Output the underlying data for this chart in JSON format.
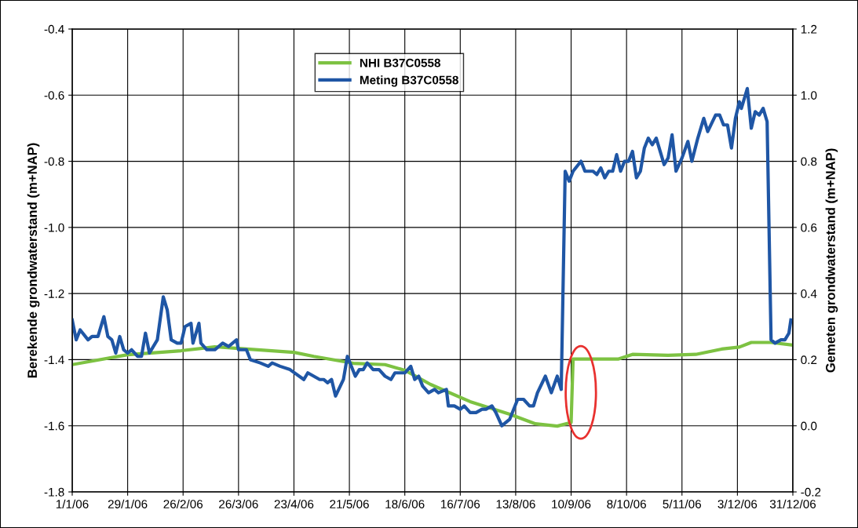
{
  "chart_data": {
    "type": "line",
    "ylabel": "Berekende grondwaterstand (m+NAP)",
    "y2label": "Gemeten grondwaterstand (m+NAP)",
    "xlim": [
      "2006-01-01",
      "2006-12-31"
    ],
    "xticks": [
      {
        "value": "2006-01-01",
        "label": "1/1/06"
      },
      {
        "value": "2006-01-29",
        "label": "29/1/06"
      },
      {
        "value": "2006-02-26",
        "label": "26/2/06"
      },
      {
        "value": "2006-03-26",
        "label": "26/3/06"
      },
      {
        "value": "2006-04-23",
        "label": "23/4/06"
      },
      {
        "value": "2006-05-21",
        "label": "21/5/06"
      },
      {
        "value": "2006-06-18",
        "label": "18/6/06"
      },
      {
        "value": "2006-07-16",
        "label": "16/7/06"
      },
      {
        "value": "2006-08-13",
        "label": "13/8/06"
      },
      {
        "value": "2006-09-10",
        "label": "10/9/06"
      },
      {
        "value": "2006-10-08",
        "label": "8/10/06"
      },
      {
        "value": "2006-11-05",
        "label": "5/11/06"
      },
      {
        "value": "2006-12-03",
        "label": "3/12/06"
      },
      {
        "value": "2006-12-31",
        "label": "31/12/06"
      }
    ],
    "ylim": [
      -1.8,
      -0.4
    ],
    "yticks": [
      {
        "value": -1.8,
        "label": "-1.8"
      },
      {
        "value": -1.6,
        "label": "-1.6"
      },
      {
        "value": -1.4,
        "label": "-1.4"
      },
      {
        "value": -1.2,
        "label": "-1.2"
      },
      {
        "value": -1.0,
        "label": "-1.0"
      },
      {
        "value": -0.8,
        "label": "-0.8"
      },
      {
        "value": -0.6,
        "label": "-0.6"
      },
      {
        "value": -0.4,
        "label": "-0.4"
      }
    ],
    "y2lim": [
      -0.2,
      1.2
    ],
    "y2ticks": [
      {
        "value": -0.2,
        "label": "-0.2"
      },
      {
        "value": 0.0,
        "label": "0.0"
      },
      {
        "value": 0.2,
        "label": "0.2"
      },
      {
        "value": 0.4,
        "label": "0.4"
      },
      {
        "value": 0.6,
        "label": "0.6"
      },
      {
        "value": 0.8,
        "label": "0.8"
      },
      {
        "value": 1.0,
        "label": "1.0"
      },
      {
        "value": 1.2,
        "label": "1.2"
      }
    ],
    "grid": true,
    "legend": "top",
    "marker": "none",
    "line_style": "solid",
    "series": [
      {
        "name": "NHI B37C0558",
        "color": "#7dc242",
        "x": [
          "2006-01-01",
          "2006-01-29",
          "2006-02-25",
          "2006-03-14",
          "2006-03-26",
          "2006-04-23",
          "2006-05-03",
          "2006-05-23",
          "2006-06-08",
          "2006-06-18",
          "2006-07-01",
          "2006-07-21",
          "2006-08-10",
          "2006-08-23",
          "2006-09-03",
          "2006-09-10",
          "2006-09-11",
          "2006-10-04",
          "2006-10-11",
          "2006-10-29",
          "2006-11-12",
          "2006-11-25",
          "2006-12-04",
          "2006-12-10",
          "2006-12-20",
          "2006-12-31"
        ],
        "values": [
          -1.415,
          -1.385,
          -1.373,
          -1.361,
          -1.366,
          -1.378,
          -1.39,
          -1.411,
          -1.415,
          -1.432,
          -1.475,
          -1.527,
          -1.565,
          -1.594,
          -1.601,
          -1.59,
          -1.398,
          -1.398,
          -1.384,
          -1.387,
          -1.384,
          -1.368,
          -1.362,
          -1.348,
          -1.348,
          -1.356
        ]
      },
      {
        "name": "Meting B37C0558",
        "color": "#1f56a5",
        "axis": "y2",
        "x": [
          "2006-01-01",
          "2006-01-03",
          "2006-01-05",
          "2006-01-09",
          "2006-01-11",
          "2006-01-14",
          "2006-01-17",
          "2006-01-19",
          "2006-01-21",
          "2006-01-23",
          "2006-01-25",
          "2006-01-27",
          "2006-01-29",
          "2006-01-31",
          "2006-02-03",
          "2006-02-05",
          "2006-02-07",
          "2006-02-09",
          "2006-02-13",
          "2006-02-16",
          "2006-02-18",
          "2006-02-20",
          "2006-02-23",
          "2006-02-25",
          "2006-02-27",
          "2006-03-02",
          "2006-03-03",
          "2006-03-06",
          "2006-03-07",
          "2006-03-10",
          "2006-03-14",
          "2006-03-18",
          "2006-03-21",
          "2006-03-25",
          "2006-03-26",
          "2006-03-30",
          "2006-04-01",
          "2006-04-06",
          "2006-04-10",
          "2006-04-12",
          "2006-04-16",
          "2006-04-21",
          "2006-04-28",
          "2006-04-30",
          "2006-05-03",
          "2006-05-06",
          "2006-05-08",
          "2006-05-10",
          "2006-05-12",
          "2006-05-14",
          "2006-05-18",
          "2006-05-20",
          "2006-05-24",
          "2006-05-26",
          "2006-05-28",
          "2006-05-30",
          "2006-06-02",
          "2006-06-05",
          "2006-06-08",
          "2006-06-11",
          "2006-06-13",
          "2006-06-18",
          "2006-06-21",
          "2006-06-23",
          "2006-06-25",
          "2006-06-27",
          "2006-06-30",
          "2006-07-03",
          "2006-07-05",
          "2006-07-09",
          "2006-07-10",
          "2006-07-13",
          "2006-07-16",
          "2006-07-18",
          "2006-07-21",
          "2006-07-24",
          "2006-07-27",
          "2006-07-29",
          "2006-08-01",
          "2006-08-03",
          "2006-08-06",
          "2006-08-10",
          "2006-08-14",
          "2006-08-17",
          "2006-08-20",
          "2006-08-22",
          "2006-08-24",
          "2006-08-28",
          "2006-08-31",
          "2006-09-03",
          "2006-09-05",
          "2006-09-07",
          "2006-09-09",
          "2006-09-11",
          "2006-09-15",
          "2006-09-17",
          "2006-09-21",
          "2006-09-23",
          "2006-09-25",
          "2006-09-27",
          "2006-09-29",
          "2006-10-01",
          "2006-10-03",
          "2006-10-05",
          "2006-10-07",
          "2006-10-09",
          "2006-10-11",
          "2006-10-13",
          "2006-10-15",
          "2006-10-17",
          "2006-10-19",
          "2006-10-21",
          "2006-10-23",
          "2006-10-27",
          "2006-10-29",
          "2006-10-31",
          "2006-11-02",
          "2006-11-05",
          "2006-11-08",
          "2006-11-10",
          "2006-11-13",
          "2006-11-16",
          "2006-11-18",
          "2006-11-22",
          "2006-11-24",
          "2006-11-26",
          "2006-11-28",
          "2006-11-30",
          "2006-12-02",
          "2006-12-04",
          "2006-12-05",
          "2006-12-08",
          "2006-12-10",
          "2006-12-12",
          "2006-12-14",
          "2006-12-16",
          "2006-12-18",
          "2006-12-20",
          "2006-12-22",
          "2006-12-25",
          "2006-12-27",
          "2006-12-29",
          "2006-12-30"
        ],
        "values": [
          0.32,
          0.26,
          0.29,
          0.26,
          0.27,
          0.27,
          0.33,
          0.27,
          0.26,
          0.22,
          0.27,
          0.23,
          0.22,
          0.23,
          0.21,
          0.21,
          0.28,
          0.22,
          0.26,
          0.39,
          0.35,
          0.26,
          0.25,
          0.25,
          0.3,
          0.31,
          0.25,
          0.31,
          0.25,
          0.23,
          0.23,
          0.25,
          0.24,
          0.26,
          0.23,
          0.23,
          0.2,
          0.19,
          0.18,
          0.19,
          0.18,
          0.17,
          0.14,
          0.16,
          0.15,
          0.14,
          0.14,
          0.13,
          0.14,
          0.09,
          0.14,
          0.21,
          0.15,
          0.17,
          0.17,
          0.19,
          0.17,
          0.17,
          0.15,
          0.14,
          0.16,
          0.16,
          0.18,
          0.14,
          0.15,
          0.12,
          0.1,
          0.11,
          0.1,
          0.11,
          0.06,
          0.06,
          0.05,
          0.06,
          0.04,
          0.04,
          0.05,
          0.05,
          0.06,
          0.04,
          0.0,
          0.02,
          0.08,
          0.08,
          0.06,
          0.06,
          0.1,
          0.15,
          0.1,
          0.15,
          0.11,
          0.77,
          0.74,
          0.77,
          0.8,
          0.77,
          0.77,
          0.76,
          0.78,
          0.75,
          0.77,
          0.77,
          0.82,
          0.77,
          0.8,
          0.8,
          0.83,
          0.75,
          0.77,
          0.84,
          0.87,
          0.85,
          0.87,
          0.79,
          0.81,
          0.88,
          0.77,
          0.81,
          0.86,
          0.8,
          0.87,
          0.93,
          0.89,
          0.94,
          0.94,
          0.91,
          0.91,
          0.84,
          0.93,
          0.98,
          0.96,
          1.02,
          0.9,
          0.95,
          0.94,
          0.96,
          0.92,
          0.26,
          0.25,
          0.26,
          0.26,
          0.28,
          0.32
        ]
      }
    ]
  }
}
